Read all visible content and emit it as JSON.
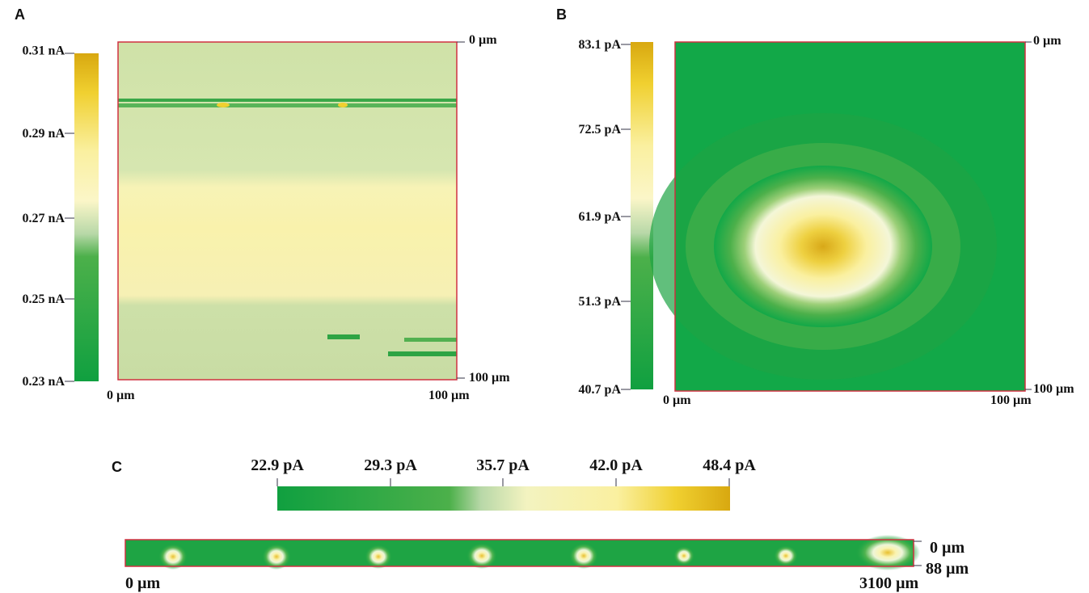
{
  "panels": [
    {
      "label": "A",
      "colorbar_labels": [
        "0.31 nA",
        "0.29 nA",
        "0.27 nA",
        "0.25 nA",
        "0.23 nA"
      ],
      "right_top": "0 µm",
      "right_bottom": "100 µm",
      "bottom_left": "0 µm",
      "bottom_right": "100 µm"
    },
    {
      "label": "B",
      "colorbar_labels": [
        "83.1 pA",
        "72.5 pA",
        "61.9 pA",
        "51.3 pA",
        "40.7 pA"
      ],
      "right_top": "0 µm",
      "right_bottom": "100 µm",
      "bottom_left": "0 µm",
      "bottom_right": "100 µm"
    },
    {
      "label": "C",
      "colorbar_labels": [
        "22.9 pA",
        "29.3 pA",
        "35.7 pA",
        "42.0 pA",
        "48.4 pA"
      ],
      "right_top": "0 µm",
      "right_bottom": "88 µm",
      "bottom_left": "0 µm",
      "bottom_right": "3100 µm"
    }
  ]
}
